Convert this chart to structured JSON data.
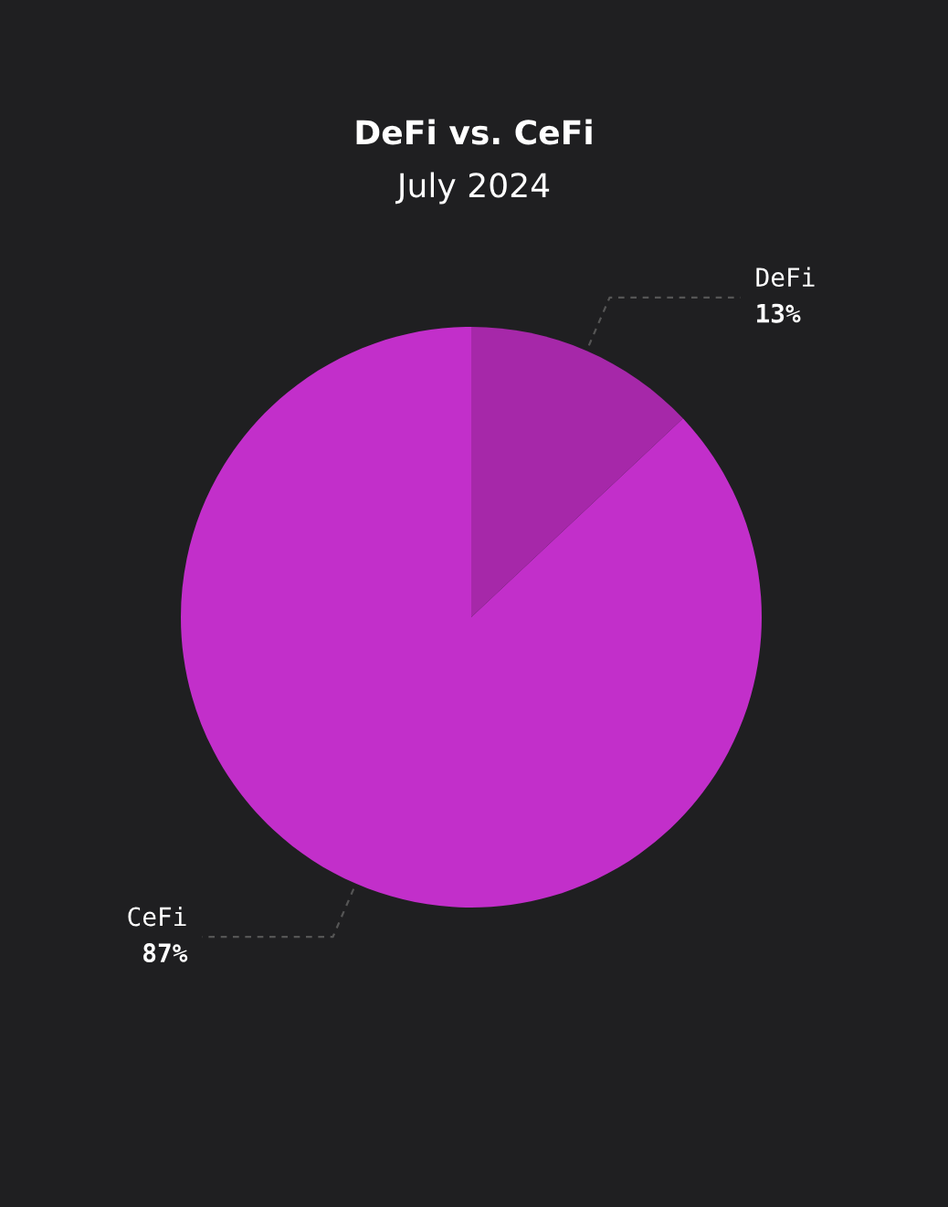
{
  "chart_data": {
    "type": "pie",
    "title": "DeFi vs. CeFi",
    "subtitle": "July 2024",
    "categories": [
      "DeFi",
      "CeFi"
    ],
    "values": [
      13,
      87
    ],
    "value_labels": [
      "13%",
      "87%"
    ],
    "colors": [
      "#a628a9",
      "#c22fca"
    ],
    "legend": false
  }
}
